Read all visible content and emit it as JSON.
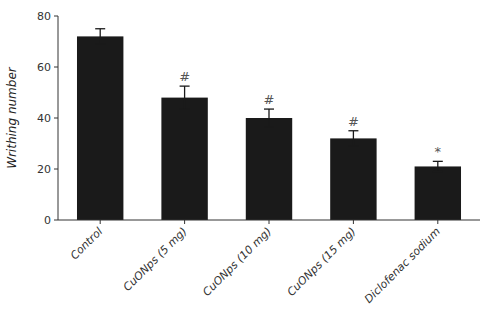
{
  "chart_data": {
    "type": "bar",
    "categories": [
      "Control",
      "CuONps (5 mg)",
      "CuONps (10 mg)",
      "CuONps (15 mg)",
      "Diclofenac sodium"
    ],
    "values": [
      72.0,
      48.0,
      40.0,
      32.0,
      21.0
    ],
    "errors": [
      3.0,
      4.5,
      3.5,
      3.0,
      2.0
    ],
    "color": "#1a1a1a",
    "ylabel": "Writhing number",
    "ylim": [
      0,
      80
    ],
    "yticks": [
      0,
      20,
      40,
      60,
      80
    ],
    "annotations": [
      null,
      "#",
      "#",
      "#",
      "*"
    ],
    "grid": false
  }
}
